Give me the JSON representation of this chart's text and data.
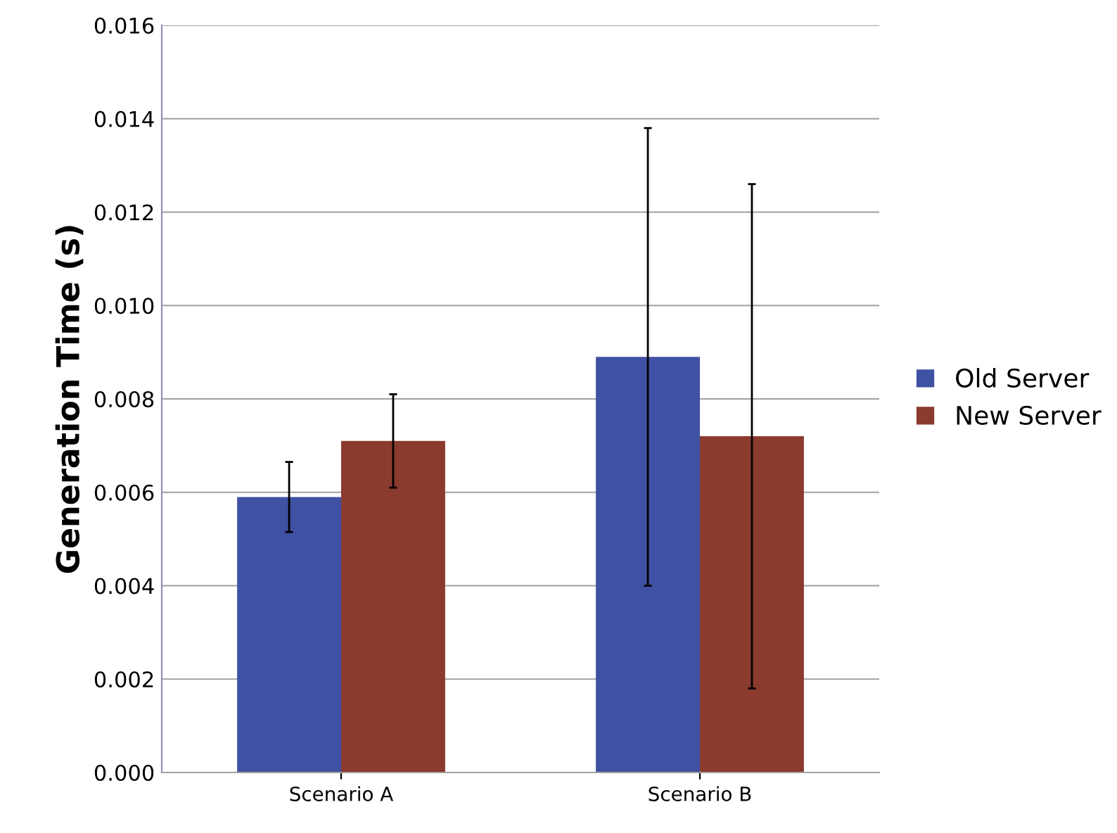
{
  "chart_data": {
    "type": "bar",
    "ylabel": "Generation Time (s)",
    "categories": [
      "Scenario A",
      "Scenario B"
    ],
    "series": [
      {
        "name": "Old Server",
        "color": "#3f51a3",
        "values": [
          0.0059,
          0.0089
        ],
        "errors": [
          [
            0.00515,
            0.00665
          ],
          [
            0.004,
            0.0138
          ]
        ]
      },
      {
        "name": "New Server",
        "color": "#8b3a2e",
        "values": [
          0.0071,
          0.0072
        ],
        "errors": [
          [
            0.0061,
            0.0081
          ],
          [
            0.0018,
            0.0126
          ]
        ]
      }
    ],
    "ylim": [
      0,
      0.016
    ],
    "yticks": [
      {
        "value": 0,
        "label": "0.000"
      },
      {
        "value": 0.002,
        "label": "0.002"
      },
      {
        "value": 0.004,
        "label": "0.004"
      },
      {
        "value": 0.006,
        "label": "0.006"
      },
      {
        "value": 0.008,
        "label": "0.008"
      },
      {
        "value": 0.01,
        "label": "0.010"
      },
      {
        "value": 0.012,
        "label": "0.012"
      },
      {
        "value": 0.014,
        "label": "0.014"
      },
      {
        "value": 0.016,
        "label": "0.016"
      }
    ],
    "grid": "y",
    "legend": "right"
  }
}
